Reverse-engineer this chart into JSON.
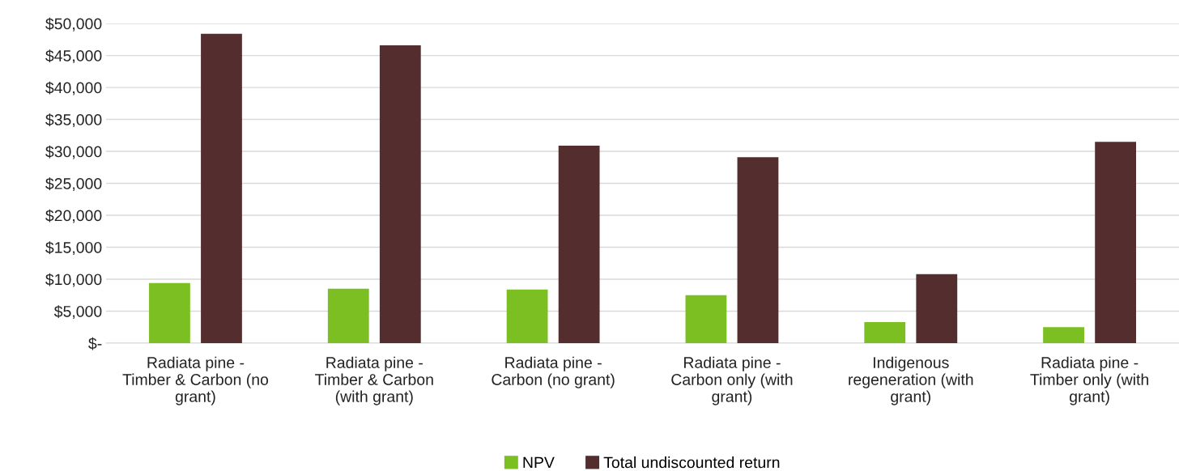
{
  "chart_data": {
    "type": "bar",
    "categories": [
      "Radiata pine - Timber & Carbon (no grant)",
      "Radiata pine - Timber & Carbon (with grant)",
      "Radiata pine - Carbon (no grant)",
      "Radiata pine - Carbon only (with grant)",
      "Indigenous regeneration (with grant)",
      "Radiata pine - Timber only (with grant)"
    ],
    "series": [
      {
        "name": "NPV",
        "color": "#7bbf22",
        "values": [
          9400,
          8500,
          8400,
          7500,
          3300,
          2500
        ]
      },
      {
        "name": "Total undiscounted return",
        "color": "#542d2e",
        "values": [
          48400,
          46600,
          30900,
          29100,
          10800,
          31500
        ]
      }
    ],
    "ylim": [
      0,
      50000
    ],
    "yticks": [
      {
        "value": 0,
        "label": "$-"
      },
      {
        "value": 5000,
        "label": "$5,000"
      },
      {
        "value": 10000,
        "label": "$10,000"
      },
      {
        "value": 15000,
        "label": "$15,000"
      },
      {
        "value": 20000,
        "label": "$20,000"
      },
      {
        "value": 25000,
        "label": "$25,000"
      },
      {
        "value": 30000,
        "label": "$30,000"
      },
      {
        "value": 35000,
        "label": "$35,000"
      },
      {
        "value": 40000,
        "label": "$40,000"
      },
      {
        "value": 45000,
        "label": "$45,000"
      },
      {
        "value": 50000,
        "label": "$50,000"
      }
    ],
    "grid": "y",
    "legend": "bottom"
  }
}
